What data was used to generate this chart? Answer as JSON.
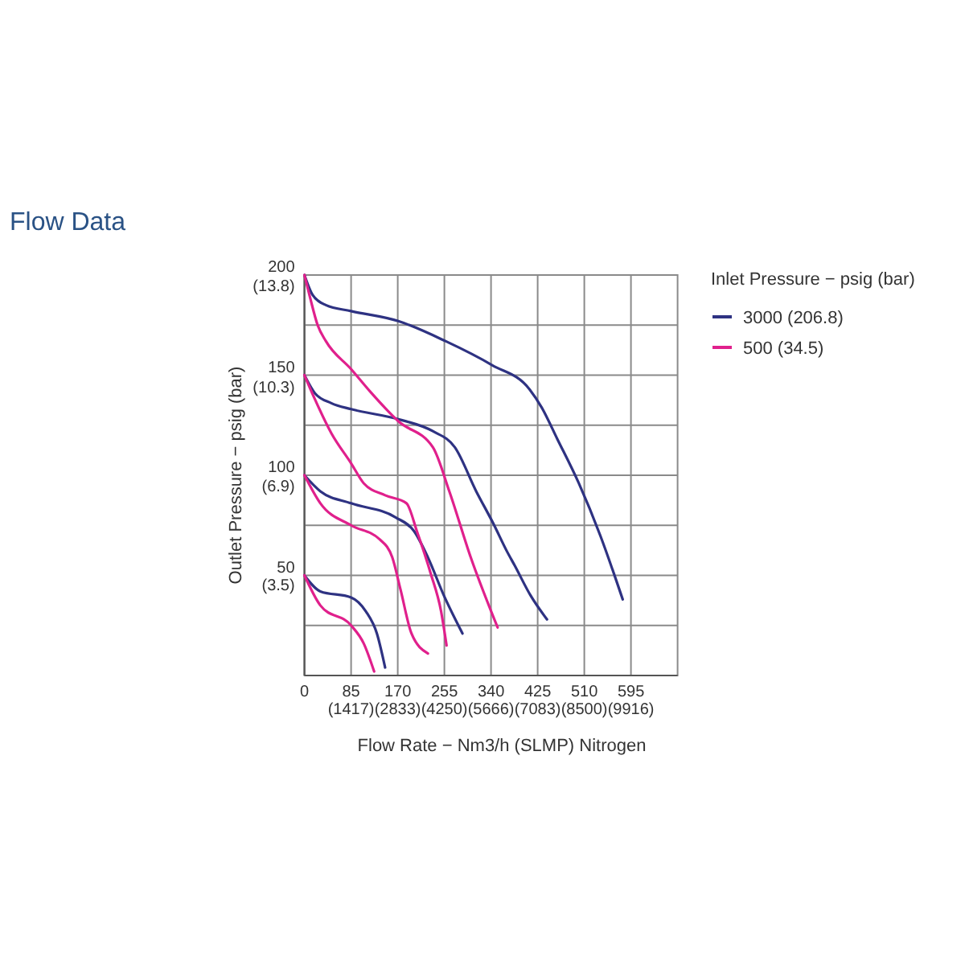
{
  "chart_data": {
    "type": "line",
    "title": "Flow Data",
    "xlabel": "Flow Rate − Nm3/h (SLMP) Nitrogen",
    "y2label": "Outlet Pressure − psig (bar)",
    "legend_title": "Inlet Pressure − psig (bar)",
    "xlim": [
      0,
      680
    ],
    "xticks": [
      0,
      85,
      170,
      255,
      340,
      425,
      510,
      595
    ],
    "x2lim": [
      0,
      11333
    ],
    "x2ticks": [
      {
        "value": 1417,
        "label": "(1417)"
      },
      {
        "value": 2833,
        "label": "(2833)"
      },
      {
        "value": 4250,
        "label": "(4250)"
      },
      {
        "value": 5666,
        "label": "(5666)"
      },
      {
        "value": 7083,
        "label": "(7083)"
      },
      {
        "value": 8500,
        "label": "(8500)"
      },
      {
        "value": 9916,
        "label": "(9916)"
      }
    ],
    "ylim": [
      0,
      200
    ],
    "yticks": [
      {
        "value": 0,
        "label": null
      },
      {
        "value": 25,
        "label": null
      },
      50,
      {
        "value": 75,
        "label": null
      },
      100,
      {
        "value": 125,
        "label": null
      },
      150,
      {
        "value": 175,
        "label": null
      },
      200
    ],
    "y2lim": [
      0,
      13.8
    ],
    "y2ticks": [
      {
        "value": 3.5,
        "label": "(3.5)"
      },
      {
        "value": 6.9,
        "label": "(6.9)"
      },
      {
        "value": 10.3,
        "label": "(10.3)"
      },
      {
        "value": 13.8,
        "label": "(13.8)"
      }
    ],
    "grid": true,
    "legend": "right",
    "series": [
      {
        "name": "3000 (206.8)",
        "color": "#2e3282",
        "x": [
          0,
          15,
          39,
          85,
          171,
          257,
          342,
          410,
          432,
          461,
          500,
          539,
          580
        ],
        "values": [
          200,
          190,
          185,
          182,
          177,
          167,
          155,
          143,
          134,
          118,
          96,
          70,
          38
        ]
      },
      {
        "color": "#2e3282",
        "x": [
          0,
          19,
          49,
          85,
          171,
          234,
          274,
          313,
          344,
          369,
          383,
          412,
          442
        ],
        "values": [
          150,
          141,
          136,
          133,
          128,
          122,
          114,
          92,
          76,
          62,
          55,
          40,
          28
        ]
      },
      {
        "color": "#2e3282",
        "x": [
          0,
          29,
          85,
          166,
          200,
          225,
          254,
          288
        ],
        "values": [
          100,
          92,
          86,
          79,
          72,
          59,
          40,
          21
        ]
      },
      {
        "color": "#2e3282",
        "x": [
          0,
          29,
          85,
          112,
          132,
          147
        ],
        "values": [
          50,
          42,
          39,
          32,
          21,
          4
        ]
      },
      {
        "name": "500 (34.5)",
        "color": "#e0208c",
        "x": [
          0,
          10,
          24,
          39,
          85,
          119,
          171,
          234,
          264,
          303,
          352
        ],
        "values": [
          200,
          189,
          175,
          167,
          153,
          142,
          127,
          114,
          92,
          59,
          24
        ]
      },
      {
        "color": "#e0208c",
        "x": [
          0,
          19,
          49,
          85,
          108,
          147,
          186,
          205,
          230,
          249,
          259
        ],
        "values": [
          150,
          138,
          121,
          106,
          96,
          90,
          86,
          72,
          51,
          32,
          15
        ]
      },
      {
        "color": "#e0208c",
        "x": [
          0,
          29,
          85,
          137,
          160,
          175,
          195,
          225
        ],
        "values": [
          100,
          86,
          75,
          68,
          59,
          43,
          21,
          11
        ]
      },
      {
        "color": "#e0208c",
        "x": [
          0,
          29,
          85,
          108,
          127
        ],
        "values": [
          50,
          35,
          25,
          16,
          2
        ]
      }
    ]
  }
}
